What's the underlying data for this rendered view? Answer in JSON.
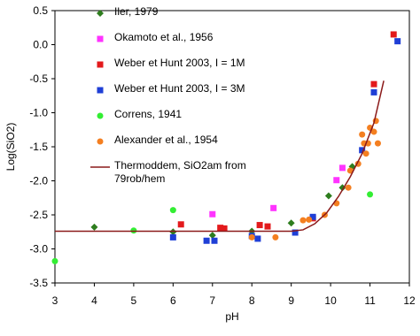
{
  "chart_data": {
    "type": "scatter",
    "x_label": "pH",
    "y_label": "Log(SiO2)",
    "xlim": [
      3,
      12
    ],
    "ylim": [
      -3.5,
      0.5
    ],
    "xticks": [
      3,
      4,
      5,
      6,
      7,
      8,
      9,
      10,
      11,
      12
    ],
    "yticks": [
      -3.5,
      {
        "value": -3,
        "label": "-3.0"
      },
      -2.5,
      {
        "value": -2,
        "label": "-2.0"
      },
      -1.5,
      {
        "value": -1,
        "label": "-1.0"
      },
      -0.5,
      {
        "value": 0,
        "label": "0.0"
      },
      0.5
    ],
    "series": [
      {
        "name": "Iler, 1979",
        "color": "#2e7d1e",
        "marker": "diamond",
        "x": [
          4.0,
          6.0,
          7.0,
          8.0,
          9.0,
          9.95,
          10.3,
          10.55
        ],
        "values": [
          -2.68,
          -2.75,
          -2.8,
          -2.74,
          -2.62,
          -2.22,
          -2.1,
          -1.79
        ]
      },
      {
        "name": "Okamoto et al., 1956",
        "color": "#ff33ff",
        "marker": "square",
        "x": [
          7.0,
          8.55,
          10.15,
          10.3
        ],
        "values": [
          -2.49,
          -2.4,
          -1.99,
          -1.81
        ]
      },
      {
        "name": "Weber et Hunt 2003, I = 1M",
        "color": "#e31a1c",
        "marker": "square",
        "x": [
          6.2,
          7.2,
          7.3,
          8.2,
          8.4,
          9.55,
          11.1,
          11.6
        ],
        "values": [
          -2.64,
          -2.69,
          -2.7,
          -2.65,
          -2.67,
          -2.55,
          -0.58,
          0.15
        ]
      },
      {
        "name": "Weber et Hunt 2003, I = 3M",
        "color": "#1f3fd6",
        "marker": "square",
        "x": [
          6.0,
          6.85,
          7.05,
          8.0,
          8.15,
          9.1,
          9.55,
          10.8,
          11.1,
          11.7
        ],
        "values": [
          -2.83,
          -2.88,
          -2.88,
          -2.81,
          -2.85,
          -2.76,
          -2.53,
          -1.55,
          -0.7,
          0.05
        ]
      },
      {
        "name": "Correns, 1941",
        "color": "#33ee33",
        "marker": "circle",
        "x": [
          3.0,
          5.0,
          6.0,
          11.0
        ],
        "values": [
          -3.18,
          -2.73,
          -2.43,
          -2.2
        ]
      },
      {
        "name": "Alexander et al., 1954",
        "color": "#f47f20",
        "marker": "circle",
        "x": [
          8.0,
          8.6,
          9.3,
          9.45,
          9.85,
          10.15,
          10.45,
          10.5,
          10.7,
          10.85,
          10.9,
          10.95,
          10.8,
          11.0,
          11.1,
          11.15,
          11.2
        ],
        "values": [
          -2.83,
          -2.83,
          -2.58,
          -2.57,
          -2.5,
          -2.33,
          -2.1,
          -1.85,
          -1.75,
          -1.45,
          -1.6,
          -1.45,
          -1.32,
          -1.22,
          -1.28,
          -1.12,
          -1.45
        ]
      },
      {
        "name": "Thermoddem, SiO2am from 79rob/hem",
        "color": "#8b1a1a",
        "marker": "line",
        "x": [
          3.0,
          9.0,
          9.3,
          9.6,
          9.9,
          10.2,
          10.5,
          10.8,
          11.1,
          11.35
        ],
        "values": [
          -2.74,
          -2.74,
          -2.72,
          -2.63,
          -2.47,
          -2.23,
          -1.94,
          -1.6,
          -1.15,
          -0.53
        ]
      }
    ]
  }
}
